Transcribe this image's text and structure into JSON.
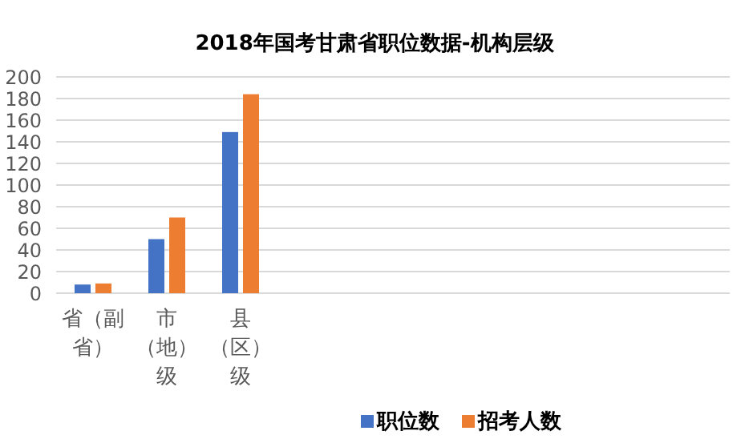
{
  "chart_data": {
    "type": "bar",
    "title": "2018年国考甘肃省职位数据-机构层级",
    "categories": [
      "省（副省）",
      "市（地）级",
      "县（区）级"
    ],
    "series": [
      {
        "name": "职位数",
        "color": "#4472c4",
        "values": [
          8,
          50,
          149
        ]
      },
      {
        "name": "招考人数",
        "color": "#ed7d31",
        "values": [
          9,
          70,
          184
        ]
      }
    ],
    "ylim": [
      0,
      200
    ],
    "yticks": [
      0,
      20,
      40,
      60,
      80,
      100,
      120,
      140,
      160,
      180,
      200
    ],
    "grid": "y",
    "legend": "bottom"
  }
}
